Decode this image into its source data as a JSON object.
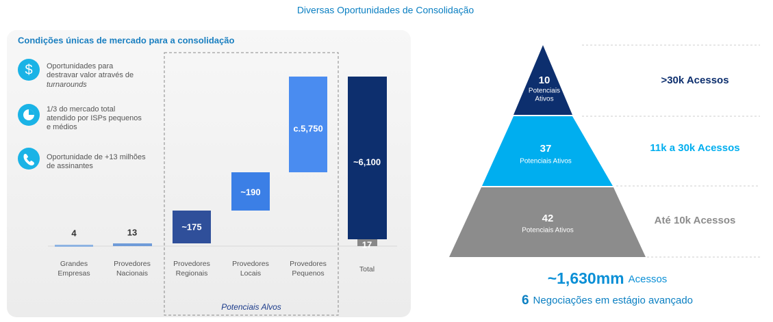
{
  "title": "Diversas Oportunidades de Consolidação",
  "panel": {
    "heading": "Condições únicas de mercado para a consolidação",
    "points": [
      {
        "lines": [
          "Oportunidades para",
          "destravar valor através de",
          "turnarounds"
        ]
      },
      {
        "lines": [
          "1/3 do mercado total",
          "atendido por ISPs pequenos",
          "e médios"
        ]
      },
      {
        "lines": [
          "Oportunidade de +13 milhões",
          "de assinantes"
        ]
      }
    ],
    "bars": [
      {
        "label": [
          "Grandes",
          "Empresas"
        ],
        "value": "4"
      },
      {
        "label": [
          "Provedores",
          "Nacionais"
        ],
        "value": "13"
      },
      {
        "label": [
          "Provedores",
          "Regionais"
        ],
        "value": "~175"
      },
      {
        "label": [
          "Provedores",
          "Locais"
        ],
        "value": "~190"
      },
      {
        "label": [
          "Provedores",
          "Pequenos"
        ],
        "value": "c.5,750"
      }
    ],
    "total": {
      "label": "Total",
      "value": "~6,100",
      "base": "17"
    },
    "group_label": "Potenciais Alvos"
  },
  "pyramid": [
    {
      "count": "10",
      "caption": [
        "Potenciais",
        "Ativos"
      ],
      "tier": ">30k Acessos"
    },
    {
      "count": "37",
      "caption": [
        "Potenciais Ativos"
      ],
      "tier": "11k a 30k Acessos"
    },
    {
      "count": "42",
      "caption": [
        "Potenciais Ativos"
      ],
      "tier": "Até 10k Acessos"
    }
  ],
  "summary": [
    {
      "value": "~1,630mm",
      "text": "Acessos"
    },
    {
      "value": "6",
      "text": "Negociações em estágio avançado"
    }
  ]
}
